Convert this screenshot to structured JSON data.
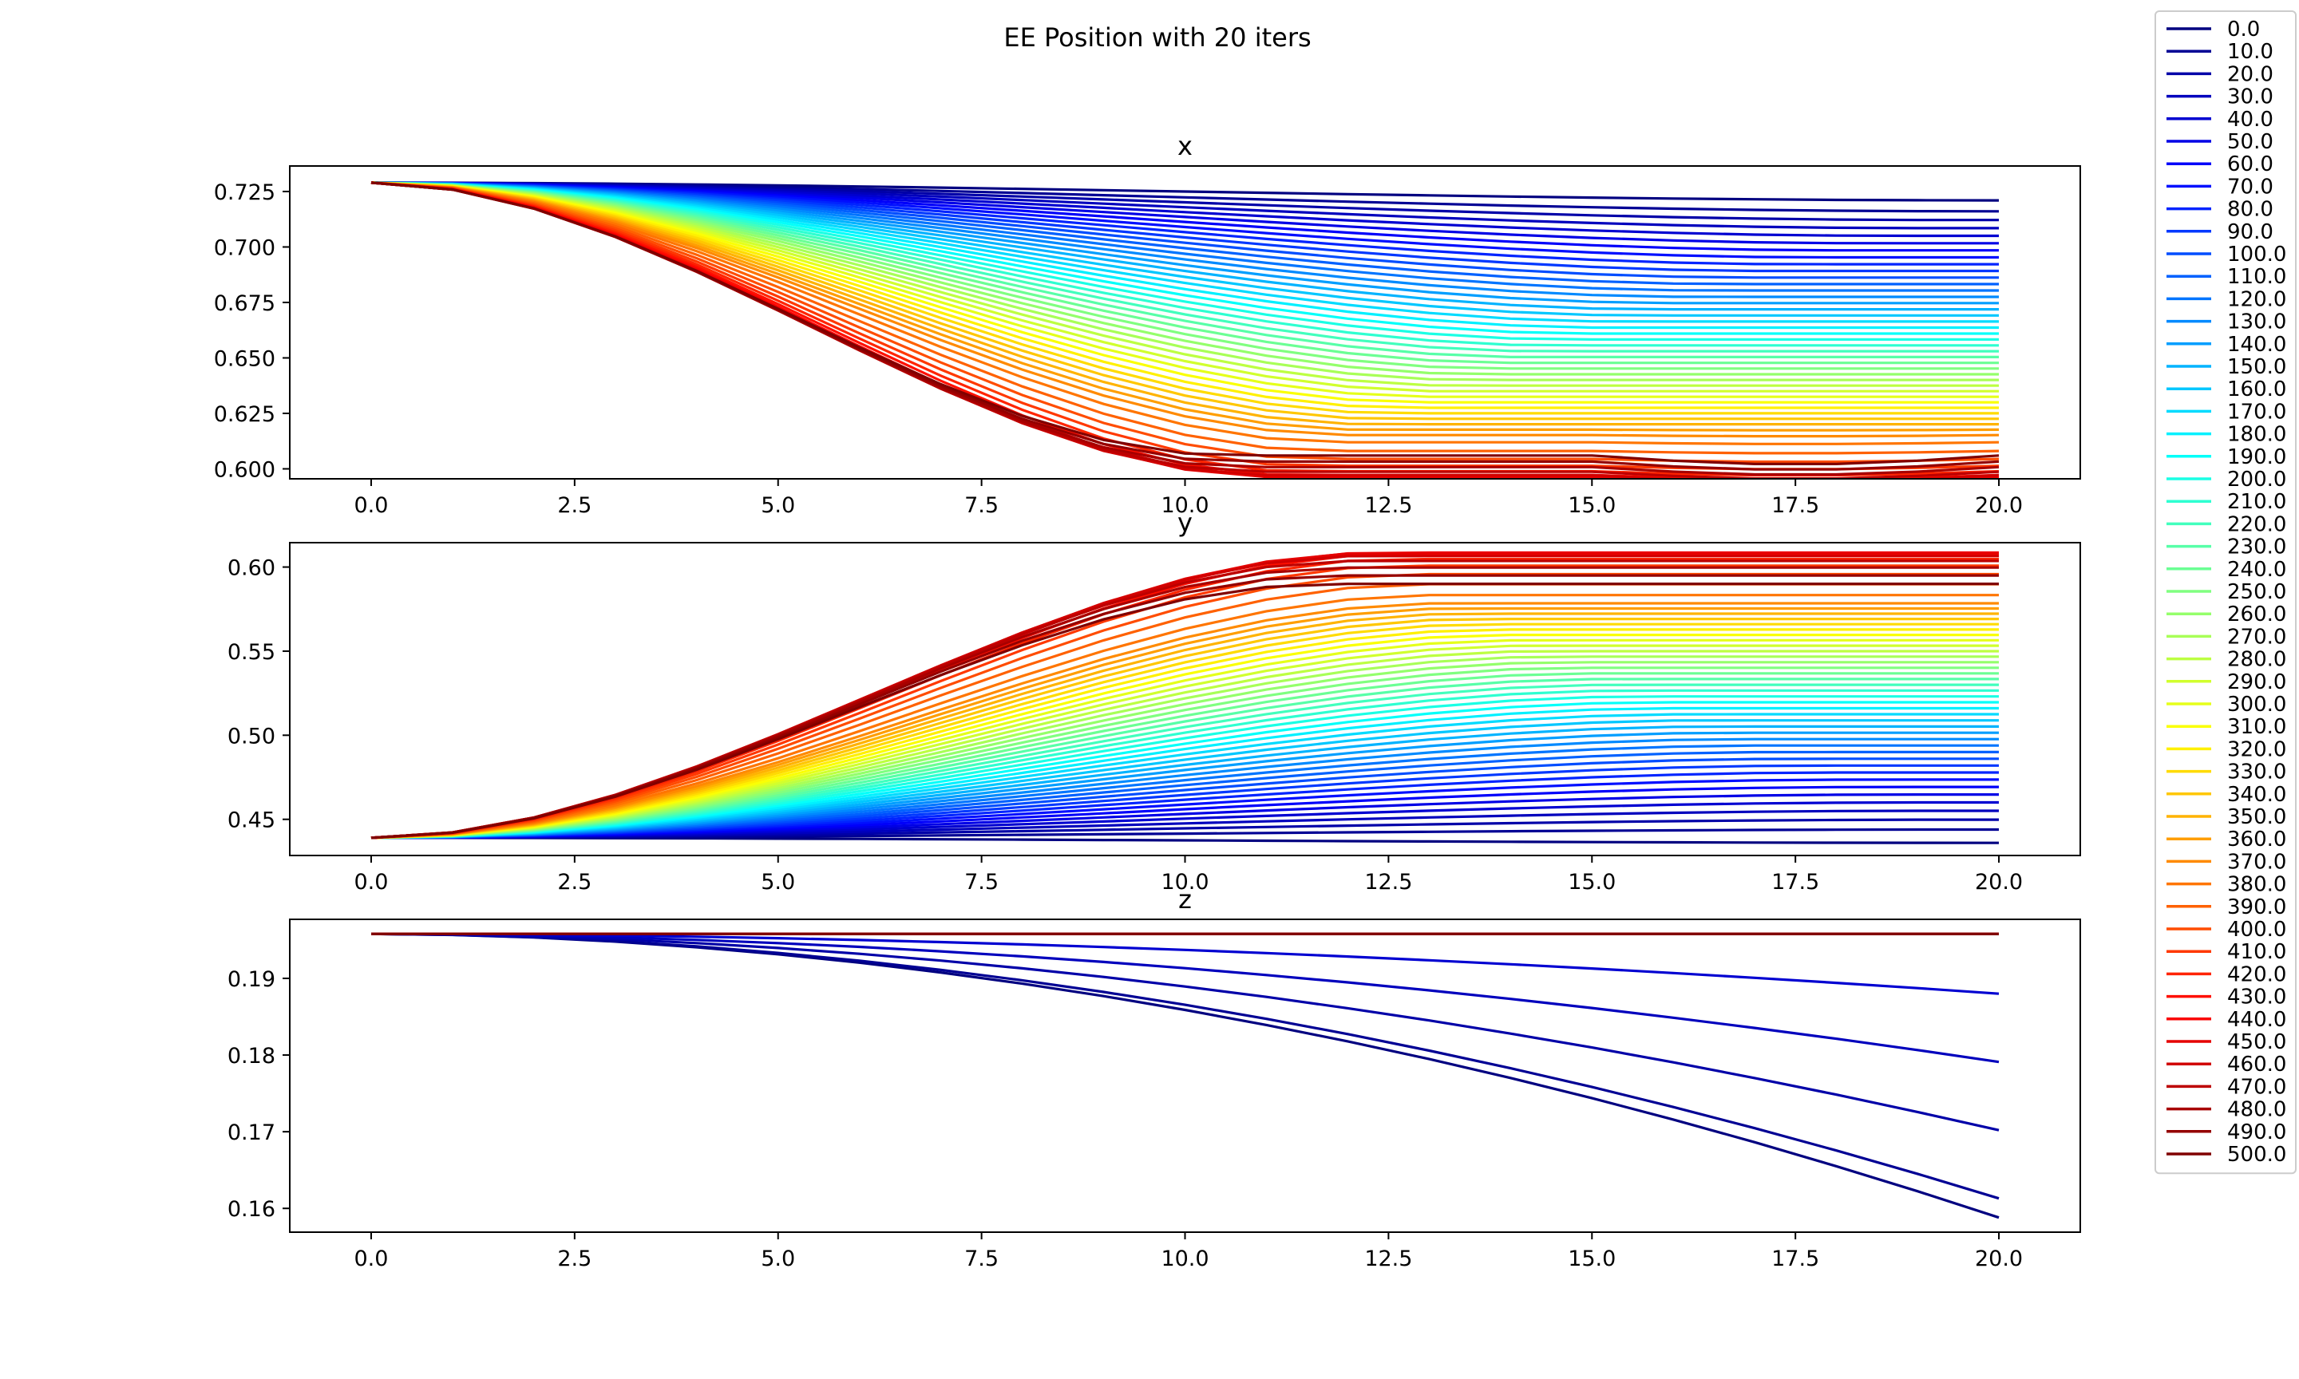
{
  "figure": {
    "title": "EE Position with 20 iters",
    "colormap": "jet",
    "legend": {
      "placement": "right-outside-top",
      "entries": [
        "0.0",
        "10.0",
        "20.0",
        "30.0",
        "40.0",
        "50.0",
        "60.0",
        "70.0",
        "80.0",
        "90.0",
        "100.0",
        "110.0",
        "120.0",
        "130.0",
        "140.0",
        "150.0",
        "160.0",
        "170.0",
        "180.0",
        "190.0",
        "200.0",
        "210.0",
        "220.0",
        "230.0",
        "240.0",
        "250.0",
        "260.0",
        "270.0",
        "280.0",
        "290.0",
        "300.0",
        "310.0",
        "320.0",
        "330.0",
        "340.0",
        "350.0",
        "360.0",
        "370.0",
        "380.0",
        "390.0",
        "400.0",
        "410.0",
        "420.0",
        "430.0",
        "440.0",
        "450.0",
        "460.0",
        "470.0",
        "480.0",
        "490.0",
        "500.0"
      ]
    }
  },
  "chart_data": [
    {
      "type": "line",
      "title": "x",
      "xlabel": "",
      "ylabel": "",
      "xlim": [
        -1.0,
        21.0
      ],
      "ylim": [
        0.5955,
        0.7365
      ],
      "xticks": [
        "0.0",
        "2.5",
        "5.0",
        "7.5",
        "10.0",
        "12.5",
        "15.0",
        "17.5",
        "20.0"
      ],
      "yticks": [
        "0.600",
        "0.625",
        "0.650",
        "0.675",
        "0.700",
        "0.725"
      ],
      "grid": false,
      "series_params": {
        "start": 0.729,
        "end_first": 0.721,
        "end_last": 0.606,
        "end_min": 0.599,
        "end_converged": 0.614,
        "dip": 0.004
      }
    },
    {
      "type": "line",
      "title": "y",
      "xlabel": "",
      "ylabel": "",
      "xlim": [
        -1.0,
        21.0
      ],
      "ylim": [
        0.4285,
        0.6145
      ],
      "xticks": [
        "0.0",
        "2.5",
        "5.0",
        "7.5",
        "10.0",
        "12.5",
        "15.0",
        "17.5",
        "20.0"
      ],
      "yticks": [
        "0.45",
        "0.50",
        "0.55",
        "0.60"
      ],
      "grid": false,
      "series_params": {
        "start": 0.439,
        "end_first": 0.436,
        "end_last": 0.59,
        "end_max": 0.606,
        "end_converged": 0.58
      }
    },
    {
      "type": "line",
      "title": "z",
      "xlabel": "",
      "ylabel": "",
      "xlim": [
        -1.0,
        21.0
      ],
      "ylim": [
        0.1569,
        0.1977
      ],
      "xticks": [
        "0.0",
        "2.5",
        "5.0",
        "7.5",
        "10.0",
        "12.5",
        "15.0",
        "17.5",
        "20.0"
      ],
      "yticks": [
        "0.16",
        "0.17",
        "0.18",
        "0.19"
      ],
      "grid": false,
      "series_ends": [
        0.1588,
        0.1613,
        0.1702,
        0.1791,
        0.188,
        0.1958
      ],
      "series_start": 0.1958
    }
  ]
}
